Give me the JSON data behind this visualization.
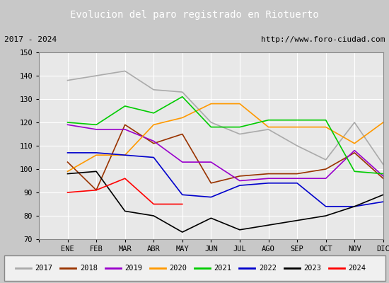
{
  "title": "Evolucion del paro registrado en Riotuerto",
  "title_color": "#ffffff",
  "title_bg_color": "#4472c4",
  "subtitle_left": "2017 - 2024",
  "subtitle_right": "http://www.foro-ciudad.com",
  "months": [
    "",
    "ENE",
    "FEB",
    "MAR",
    "ABR",
    "MAY",
    "JUN",
    "JUL",
    "AGO",
    "SEP",
    "OCT",
    "NOV",
    "DIC"
  ],
  "ylim": [
    70,
    150
  ],
  "yticks": [
    70,
    80,
    90,
    100,
    110,
    120,
    130,
    140,
    150
  ],
  "series": {
    "2017": {
      "color": "#aaaaaa",
      "data": [
        138,
        140,
        142,
        134,
        133,
        120,
        115,
        117,
        110,
        104,
        120,
        102
      ]
    },
    "2018": {
      "color": "#993300",
      "data": [
        103,
        91,
        119,
        111,
        115,
        94,
        97,
        98,
        98,
        100,
        107,
        96
      ]
    },
    "2019": {
      "color": "#9900cc",
      "data": [
        119,
        117,
        117,
        112,
        103,
        103,
        95,
        96,
        96,
        96,
        108,
        97
      ]
    },
    "2020": {
      "color": "#ff9900",
      "data": [
        99,
        106,
        106,
        119,
        122,
        128,
        128,
        118,
        118,
        118,
        111,
        120
      ]
    },
    "2021": {
      "color": "#00cc00",
      "data": [
        120,
        119,
        127,
        124,
        131,
        118,
        118,
        121,
        121,
        121,
        99,
        98
      ]
    },
    "2022": {
      "color": "#0000cc",
      "data": [
        107,
        107,
        106,
        105,
        89,
        88,
        93,
        94,
        94,
        84,
        84,
        86
      ]
    },
    "2023": {
      "color": "#000000",
      "data": [
        98,
        99,
        82,
        80,
        73,
        79,
        74,
        76,
        78,
        80,
        84,
        89
      ]
    },
    "2024": {
      "color": "#ff0000",
      "data": [
        90,
        91,
        96,
        85,
        85,
        null,
        null,
        null,
        null,
        null,
        null,
        null
      ]
    }
  },
  "bg_color": "#c8c8c8",
  "plot_bg_color": "#e8e8e8",
  "grid_color": "#ffffff",
  "legend_order": [
    "2017",
    "2018",
    "2019",
    "2020",
    "2021",
    "2022",
    "2023",
    "2024"
  ]
}
